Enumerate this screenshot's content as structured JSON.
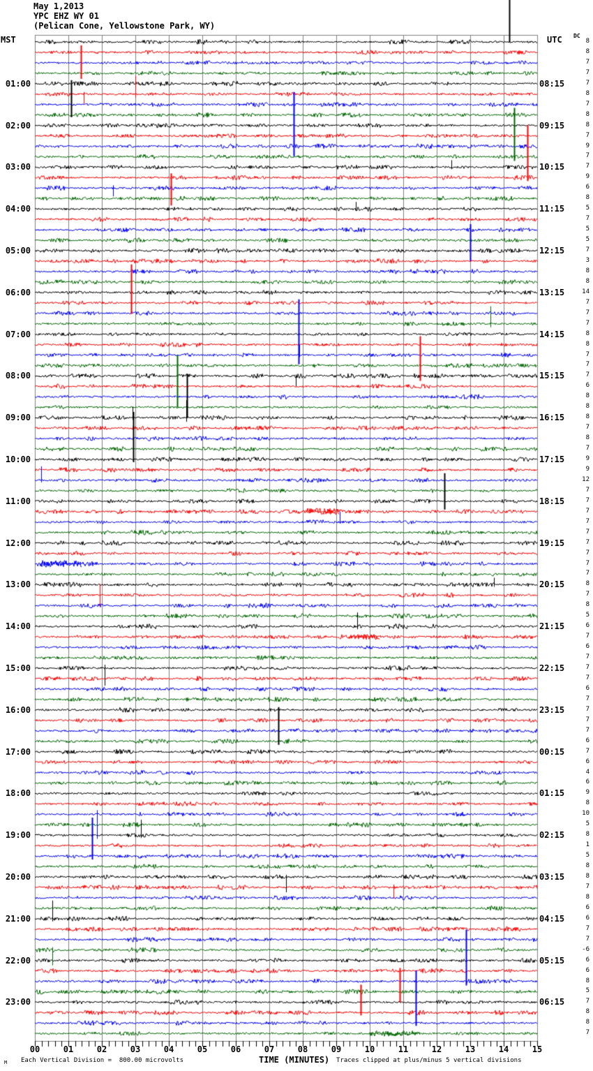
{
  "header": {
    "date": "May 1,2013",
    "station": "YPC EHZ WY 01",
    "location": "(Pelican Cone, Yellowstone Park, WY)",
    "left_timezone": "MST",
    "right_timezone": "UTC",
    "dc_column_label": "DC"
  },
  "footer": {
    "watermark": "M",
    "scale_note": "Each Vertical Division =  800.00 microvolts",
    "axis_title": "TIME (MINUTES)",
    "clip_note": "Traces clipped at plus/minus 5 vertical divisions"
  },
  "chart_data": {
    "type": "line",
    "kind": "seismogram-helicorder",
    "title": "YPC EHZ WY 01 (Pelican Cone, Yellowstone Park, WY) May 1,2013",
    "xlabel": "TIME (MINUTES)",
    "x_axis": {
      "range": [
        0,
        15
      ],
      "tick_labels": [
        "00",
        "01",
        "02",
        "03",
        "04",
        "05",
        "06",
        "07",
        "08",
        "09",
        "10",
        "11",
        "12",
        "13",
        "14",
        "15"
      ],
      "minor_tick_step": 0.2,
      "grid": true
    },
    "minutes_per_line": 15,
    "lines_per_hour": 4,
    "total_traces": 96,
    "clip_divisions": 5,
    "division_value": "800.00 microvolts",
    "colors": {
      "cycle": [
        "#000000",
        "#ff0000",
        "#0000ff",
        "#006600"
      ],
      "cycle_names": [
        "black",
        "red",
        "blue",
        "green"
      ],
      "grid": "#808080",
      "background": "#ffffff"
    },
    "dc_offsets": [
      8,
      8,
      7,
      7,
      7,
      8,
      7,
      8,
      8,
      7,
      9,
      7,
      7,
      9,
      6,
      8,
      5,
      7,
      5,
      5,
      7,
      3,
      8,
      8,
      14,
      7,
      7,
      7,
      8,
      8,
      7,
      7,
      7,
      6,
      8,
      8,
      8,
      7,
      8,
      7,
      9,
      9,
      12,
      7,
      7,
      7,
      7,
      7,
      7,
      7,
      7,
      7,
      8,
      7,
      8,
      5,
      6,
      7,
      6,
      7,
      7,
      7,
      6,
      7,
      7,
      7,
      7,
      6,
      7,
      6,
      4,
      6,
      9,
      8,
      10,
      5,
      8,
      1,
      5,
      8,
      8,
      7,
      8,
      6,
      6,
      7,
      7,
      -6,
      6,
      6,
      8,
      5,
      7,
      8,
      8,
      7
    ],
    "hour_labels": [
      {
        "trace": 5,
        "mst": "01:00",
        "utc": "08:15"
      },
      {
        "trace": 9,
        "mst": "02:00",
        "utc": "09:15"
      },
      {
        "trace": 13,
        "mst": "03:00",
        "utc": "10:15"
      },
      {
        "trace": 17,
        "mst": "04:00",
        "utc": "11:15"
      },
      {
        "trace": 21,
        "mst": "05:00",
        "utc": "12:15"
      },
      {
        "trace": 25,
        "mst": "06:00",
        "utc": "13:15"
      },
      {
        "trace": 29,
        "mst": "07:00",
        "utc": "14:15"
      },
      {
        "trace": 33,
        "mst": "08:00",
        "utc": "15:15"
      },
      {
        "trace": 37,
        "mst": "09:00",
        "utc": "16:15"
      },
      {
        "trace": 41,
        "mst": "10:00",
        "utc": "17:15"
      },
      {
        "trace": 45,
        "mst": "11:00",
        "utc": "18:15"
      },
      {
        "trace": 49,
        "mst": "12:00",
        "utc": "19:15"
      },
      {
        "trace": 53,
        "mst": "13:00",
        "utc": "20:15"
      },
      {
        "trace": 57,
        "mst": "14:00",
        "utc": "21:15"
      },
      {
        "trace": 61,
        "mst": "15:00",
        "utc": "22:15"
      },
      {
        "trace": 65,
        "mst": "16:00",
        "utc": "23:15"
      },
      {
        "trace": 69,
        "mst": "17:00",
        "utc": "00:15"
      },
      {
        "trace": 73,
        "mst": "18:00",
        "utc": "01:15"
      },
      {
        "trace": 77,
        "mst": "19:00",
        "utc": "02:15"
      },
      {
        "trace": 81,
        "mst": "20:00",
        "utc": "03:15"
      },
      {
        "trace": 85,
        "mst": "21:00",
        "utc": "04:15"
      },
      {
        "trace": 89,
        "mst": "22:00",
        "utc": "05:15"
      },
      {
        "trace": 93,
        "mst": "23:00",
        "utc": "06:15"
      }
    ],
    "spike_events": [
      [
        1,
        14.17,
        75,
        0
      ],
      [
        2,
        1.37,
        10,
        38
      ],
      [
        5,
        1.08,
        5,
        48
      ],
      [
        6,
        1.46,
        3,
        14
      ],
      [
        6,
        3.0,
        26,
        5
      ],
      [
        7,
        7.73,
        18,
        74
      ],
      [
        12,
        14.31,
        70,
        6
      ],
      [
        13,
        12.43,
        10,
        3
      ],
      [
        14,
        14.71,
        75,
        5
      ],
      [
        14,
        4.06,
        6,
        40
      ],
      [
        15,
        2.33,
        4,
        12
      ],
      [
        17,
        9.58,
        10,
        3
      ],
      [
        19,
        13.0,
        8,
        45
      ],
      [
        26,
        2.87,
        55,
        16
      ],
      [
        27,
        7.88,
        20,
        73
      ],
      [
        28,
        13.6,
        25,
        5
      ],
      [
        30,
        11.5,
        12,
        52
      ],
      [
        31,
        7.9,
        15,
        3
      ],
      [
        32,
        4.25,
        15,
        60
      ],
      [
        33,
        4.54,
        3,
        60
      ],
      [
        33,
        7.79,
        2,
        15
      ],
      [
        37,
        2.92,
        16,
        3
      ],
      [
        37,
        4.52,
        25,
        6
      ],
      [
        41,
        2.94,
        68,
        4
      ],
      [
        43,
        0.19,
        20,
        3
      ],
      [
        45,
        12.23,
        40,
        12
      ],
      [
        47,
        9.1,
        15,
        2
      ],
      [
        53,
        13.7,
        10,
        3
      ],
      [
        54,
        1.94,
        16,
        16
      ],
      [
        57,
        9.63,
        20,
        4
      ],
      [
        61,
        2.08,
        5,
        25
      ],
      [
        65,
        7.27,
        4,
        50
      ],
      [
        75,
        1.85,
        6,
        35
      ],
      [
        77,
        3.17,
        22,
        4
      ],
      [
        79,
        1.71,
        55,
        5
      ],
      [
        79,
        5.52,
        9,
        2
      ],
      [
        81,
        7.5,
        3,
        22
      ],
      [
        82,
        10.7,
        4,
        16
      ],
      [
        85,
        0.52,
        26,
        4
      ],
      [
        88,
        0.52,
        4,
        22
      ],
      [
        90,
        10.9,
        4,
        45
      ],
      [
        91,
        12.88,
        74,
        6
      ],
      [
        94,
        9.73,
        40,
        4
      ],
      [
        95,
        11.37,
        75,
        4
      ]
    ],
    "noise_bursts": [
      [
        46,
        8.15,
        9.1,
        5
      ],
      [
        51,
        0.2,
        1.4,
        5
      ],
      [
        58,
        9.4,
        10.3,
        4
      ],
      [
        96,
        10.0,
        11.5,
        4
      ]
    ]
  }
}
